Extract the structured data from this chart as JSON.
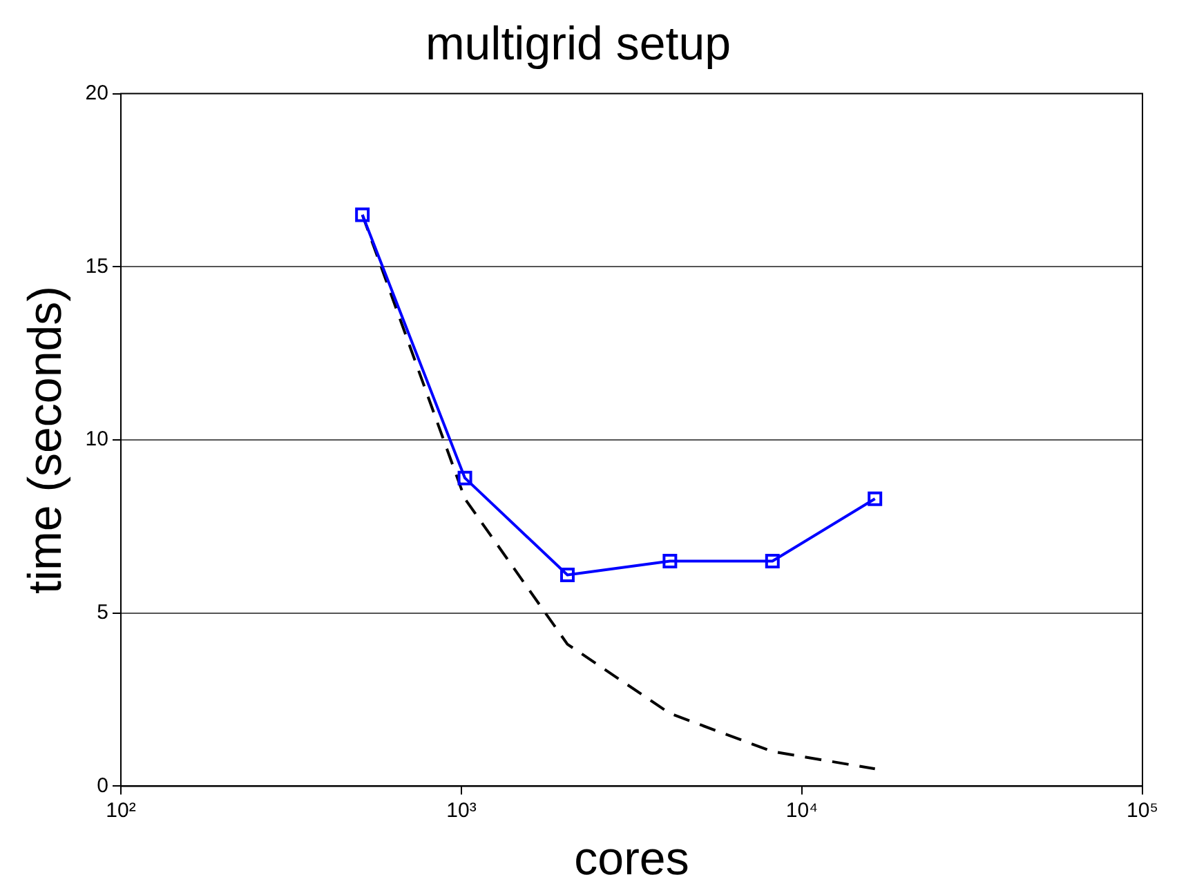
{
  "chart_data": {
    "type": "line",
    "title": "multigrid setup",
    "xlabel": "cores",
    "ylabel": "time (seconds)",
    "x": [
      512,
      1024,
      2048,
      4096,
      8192,
      16384
    ],
    "series": [
      {
        "color": "#0000ff",
        "values": [
          16.5,
          8.9,
          6.1,
          6.5,
          6.5,
          8.3
        ],
        "marker": "square",
        "line_style": "solid"
      },
      {
        "color": "#000000",
        "values": [
          16.5,
          8.3,
          4.1,
          2.1,
          1.0,
          0.5
        ],
        "marker": "none",
        "line_style": "dashed"
      }
    ],
    "log": "x",
    "xlim": [
      100,
      100000
    ],
    "xticks": [
      {
        "value": 100,
        "label": "10²"
      },
      {
        "value": 1000,
        "label": "10³"
      },
      {
        "value": 10000,
        "label": "10⁴"
      },
      {
        "value": 100000,
        "label": "10⁵"
      }
    ],
    "ylim": [
      0,
      20
    ],
    "yticks": [
      0,
      5,
      10,
      15,
      20
    ],
    "grid": "y",
    "legend": false
  }
}
